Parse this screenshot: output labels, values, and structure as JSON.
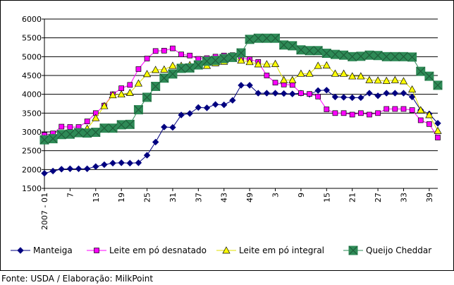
{
  "chart_data": {
    "type": "line",
    "title": "",
    "xlabel": "",
    "ylabel": "",
    "ylim": [
      1500,
      6000
    ],
    "yticks": [
      1500,
      2000,
      2500,
      3000,
      3500,
      4000,
      4500,
      5000,
      5500,
      6000
    ],
    "xtick_labels": [
      "2007 - 01",
      "7",
      "13",
      "19",
      "25",
      "31",
      "37",
      "43",
      "49",
      "3",
      "9",
      "15",
      "21",
      "27",
      "33",
      "39"
    ],
    "series": [
      {
        "name": "Manteiga",
        "color": "#000080",
        "marker": "diamond",
        "values": [
          1900,
          1960,
          2010,
          2020,
          2020,
          2020,
          2080,
          2130,
          2170,
          2180,
          2170,
          2180,
          2380,
          2730,
          3130,
          3120,
          3450,
          3490,
          3650,
          3640,
          3730,
          3720,
          3840,
          4240,
          4240,
          4030,
          4030,
          4030,
          4020,
          4010,
          4030,
          4000,
          4100,
          4110,
          3930,
          3920,
          3910,
          3910,
          4030,
          3960,
          4030,
          4030,
          4030,
          3930,
          3580,
          3480,
          3230
        ]
      },
      {
        "name": "Leite em pó desnatado",
        "color": "#ff00ff",
        "marker": "square",
        "values": [
          2920,
          2960,
          3140,
          3130,
          3130,
          3280,
          3500,
          3700,
          4000,
          4160,
          4250,
          4670,
          4950,
          5150,
          5160,
          5220,
          5060,
          5030,
          4940,
          4960,
          5000,
          5030,
          5040,
          4960,
          4930,
          4860,
          4500,
          4310,
          4260,
          4250,
          4030,
          4010,
          3940,
          3600,
          3500,
          3500,
          3460,
          3500,
          3460,
          3500,
          3610,
          3610,
          3610,
          3580,
          3310,
          3210,
          2850
        ]
      },
      {
        "name": "Leite em pó integral",
        "color": "#ffff00",
        "marker": "triangle",
        "values": [
          2820,
          2850,
          2900,
          2950,
          3000,
          3090,
          3370,
          3690,
          3980,
          4000,
          4040,
          4290,
          4540,
          4650,
          4660,
          4760,
          4760,
          4780,
          4780,
          4760,
          4830,
          4870,
          4980,
          4900,
          4860,
          4800,
          4800,
          4810,
          4380,
          4380,
          4550,
          4550,
          4760,
          4770,
          4550,
          4550,
          4480,
          4480,
          4380,
          4370,
          4360,
          4380,
          4350,
          4130,
          3580,
          3450,
          3030
        ]
      },
      {
        "name": "Queijo Cheddar",
        "color": "#2e8b57",
        "marker": "cross-square",
        "values": [
          2790,
          2820,
          2930,
          2940,
          2980,
          2970,
          2990,
          3100,
          3100,
          3190,
          3200,
          3590,
          3920,
          4210,
          4430,
          4540,
          4690,
          4700,
          4780,
          4880,
          4900,
          4950,
          4980,
          5100,
          5460,
          5490,
          5490,
          5490,
          5310,
          5290,
          5180,
          5160,
          5160,
          5090,
          5060,
          5040,
          5000,
          5010,
          5040,
          5030,
          5000,
          5000,
          5000,
          4990,
          4610,
          4480,
          4240
        ]
      }
    ]
  },
  "source_text": "Fonte: USDA / Elaboração: MilkPoint"
}
